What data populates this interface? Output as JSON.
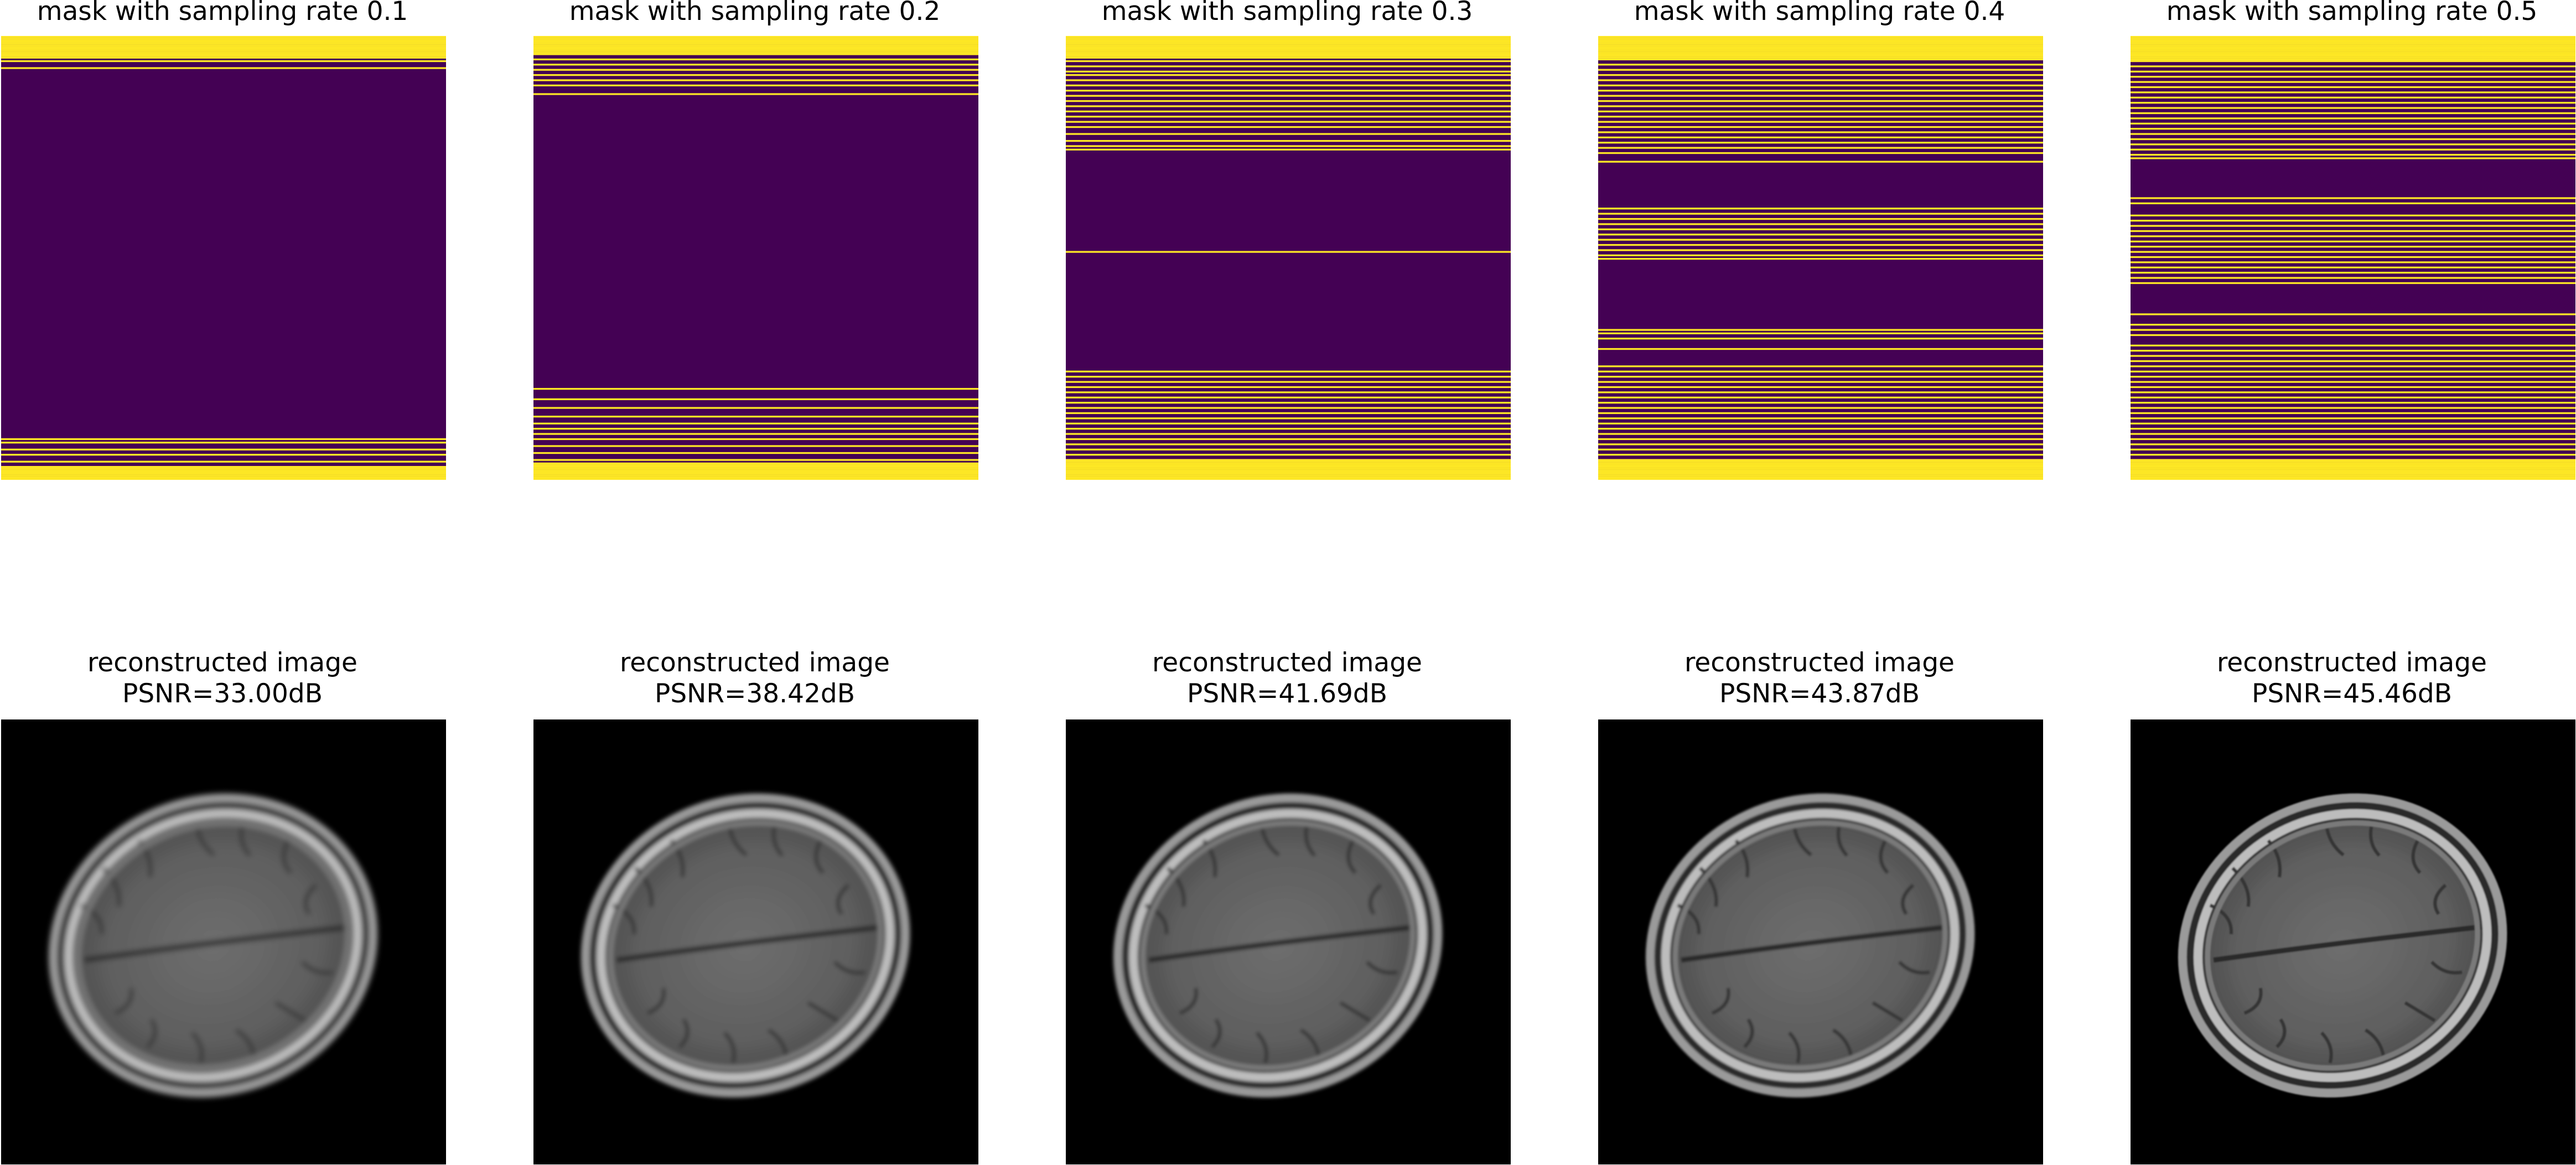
{
  "colors": {
    "mask_on": "#fde725",
    "mask_off": "#440154",
    "image_background": "#000000"
  },
  "panels": [
    {
      "mask_title": "mask with sampling rate 0.1",
      "sampling_rate": 0.1,
      "recon_title_line1": "reconstructed image",
      "recon_title_line2": "PSNR=33.00dB",
      "psnr_db": 33.0
    },
    {
      "mask_title": "mask with sampling rate 0.2",
      "sampling_rate": 0.2,
      "recon_title_line1": "reconstructed image",
      "recon_title_line2": "PSNR=38.42dB",
      "psnr_db": 38.42
    },
    {
      "mask_title": "mask with sampling rate 0.3",
      "sampling_rate": 0.3,
      "recon_title_line1": "reconstructed image",
      "recon_title_line2": "PSNR=41.69dB",
      "psnr_db": 41.69
    },
    {
      "mask_title": "mask with sampling rate 0.4",
      "sampling_rate": 0.4,
      "recon_title_line1": "reconstructed image",
      "recon_title_line2": "PSNR=43.87dB",
      "psnr_db": 43.87
    },
    {
      "mask_title": "mask with sampling rate 0.5",
      "sampling_rate": 0.5,
      "recon_title_line1": "reconstructed image",
      "recon_title_line2": "PSNR=45.46dB",
      "psnr_db": 45.46
    }
  ]
}
